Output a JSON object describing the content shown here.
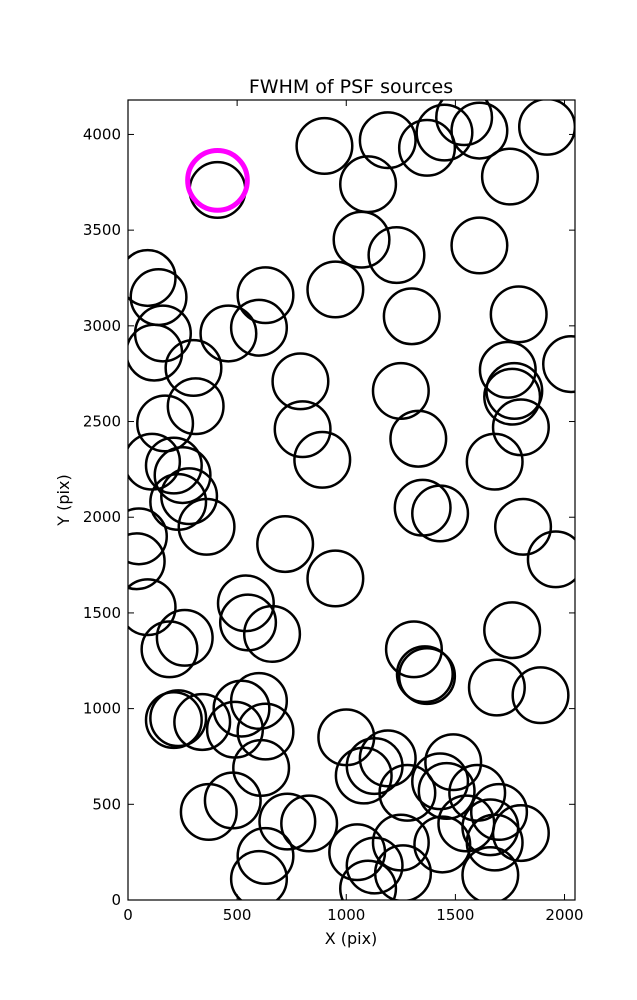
{
  "chart_data": {
    "type": "scatter",
    "title": "FWHM of PSF sources",
    "xlabel": "X (pix)",
    "ylabel": "Y (pix)",
    "xlim": [
      0,
      2048
    ],
    "ylim": [
      0,
      4180
    ],
    "xticks": [
      0,
      500,
      1000,
      1500,
      2000
    ],
    "yticks": [
      0,
      500,
      1000,
      1500,
      2000,
      2500,
      3000,
      3500,
      4000
    ],
    "xtick_labels": [
      "0",
      "500",
      "1000",
      "1500",
      "2000"
    ],
    "ytick_labels": [
      "0",
      "500",
      "1000",
      "1500",
      "2000",
      "2500",
      "3000",
      "3500",
      "4000"
    ],
    "grid": false,
    "legend": "none",
    "colors": {
      "normal": "#000000",
      "highlight": "#ff00ff"
    },
    "circle_radius_data_x": 100,
    "highlight": {
      "x": 410,
      "y": 3760
    },
    "points": [
      {
        "x": 410,
        "y": 3710
      },
      {
        "x": 900,
        "y": 3940
      },
      {
        "x": 1190,
        "y": 3970
      },
      {
        "x": 1370,
        "y": 3930
      },
      {
        "x": 1450,
        "y": 4010
      },
      {
        "x": 1540,
        "y": 4090
      },
      {
        "x": 1610,
        "y": 4020
      },
      {
        "x": 1920,
        "y": 4040
      },
      {
        "x": 1750,
        "y": 3780
      },
      {
        "x": 1100,
        "y": 3740
      },
      {
        "x": 1070,
        "y": 3450
      },
      {
        "x": 1230,
        "y": 3370
      },
      {
        "x": 1610,
        "y": 3420
      },
      {
        "x": 90,
        "y": 3250
      },
      {
        "x": 140,
        "y": 3150
      },
      {
        "x": 630,
        "y": 3160
      },
      {
        "x": 950,
        "y": 3190
      },
      {
        "x": 160,
        "y": 2960
      },
      {
        "x": 460,
        "y": 2960
      },
      {
        "x": 600,
        "y": 2990
      },
      {
        "x": 1300,
        "y": 3050
      },
      {
        "x": 1790,
        "y": 3060
      },
      {
        "x": 120,
        "y": 2860
      },
      {
        "x": 300,
        "y": 2780
      },
      {
        "x": 790,
        "y": 2710
      },
      {
        "x": 1250,
        "y": 2660
      },
      {
        "x": 1740,
        "y": 2770
      },
      {
        "x": 1770,
        "y": 2660
      },
      {
        "x": 1760,
        "y": 2630
      },
      {
        "x": 2030,
        "y": 2800
      },
      {
        "x": 310,
        "y": 2580
      },
      {
        "x": 170,
        "y": 2490
      },
      {
        "x": 800,
        "y": 2460
      },
      {
        "x": 1330,
        "y": 2410
      },
      {
        "x": 1800,
        "y": 2470
      },
      {
        "x": 890,
        "y": 2300
      },
      {
        "x": 110,
        "y": 2290
      },
      {
        "x": 210,
        "y": 2270
      },
      {
        "x": 250,
        "y": 2220
      },
      {
        "x": 1680,
        "y": 2290
      },
      {
        "x": 230,
        "y": 2080
      },
      {
        "x": 280,
        "y": 2110
      },
      {
        "x": 360,
        "y": 1950
      },
      {
        "x": 1350,
        "y": 2050
      },
      {
        "x": 1430,
        "y": 2020
      },
      {
        "x": 1810,
        "y": 1950
      },
      {
        "x": 50,
        "y": 1900
      },
      {
        "x": 40,
        "y": 1770
      },
      {
        "x": 720,
        "y": 1860
      },
      {
        "x": 1960,
        "y": 1780
      },
      {
        "x": 950,
        "y": 1680
      },
      {
        "x": 540,
        "y": 1550
      },
      {
        "x": 550,
        "y": 1450
      },
      {
        "x": 660,
        "y": 1390
      },
      {
        "x": 90,
        "y": 1530
      },
      {
        "x": 260,
        "y": 1370
      },
      {
        "x": 190,
        "y": 1310
      },
      {
        "x": 1310,
        "y": 1310
      },
      {
        "x": 1360,
        "y": 1180
      },
      {
        "x": 1370,
        "y": 1170
      },
      {
        "x": 1760,
        "y": 1410
      },
      {
        "x": 1690,
        "y": 1110
      },
      {
        "x": 1890,
        "y": 1070
      },
      {
        "x": 210,
        "y": 940
      },
      {
        "x": 230,
        "y": 950
      },
      {
        "x": 340,
        "y": 930
      },
      {
        "x": 490,
        "y": 890
      },
      {
        "x": 520,
        "y": 1000
      },
      {
        "x": 600,
        "y": 1040
      },
      {
        "x": 630,
        "y": 880
      },
      {
        "x": 610,
        "y": 690
      },
      {
        "x": 1000,
        "y": 850
      },
      {
        "x": 1080,
        "y": 650
      },
      {
        "x": 1130,
        "y": 700
      },
      {
        "x": 1190,
        "y": 740
      },
      {
        "x": 1280,
        "y": 560
      },
      {
        "x": 1430,
        "y": 620
      },
      {
        "x": 1460,
        "y": 570
      },
      {
        "x": 1490,
        "y": 720
      },
      {
        "x": 1600,
        "y": 560
      },
      {
        "x": 1550,
        "y": 400
      },
      {
        "x": 1660,
        "y": 380
      },
      {
        "x": 1700,
        "y": 460
      },
      {
        "x": 1800,
        "y": 350
      },
      {
        "x": 1680,
        "y": 300
      },
      {
        "x": 1660,
        "y": 130
      },
      {
        "x": 1440,
        "y": 290
      },
      {
        "x": 1250,
        "y": 300
      },
      {
        "x": 1260,
        "y": 140
      },
      {
        "x": 1130,
        "y": 180
      },
      {
        "x": 1100,
        "y": 60
      },
      {
        "x": 1050,
        "y": 250
      },
      {
        "x": 830,
        "y": 400
      },
      {
        "x": 730,
        "y": 410
      },
      {
        "x": 630,
        "y": 230
      },
      {
        "x": 600,
        "y": 110
      },
      {
        "x": 480,
        "y": 520
      },
      {
        "x": 370,
        "y": 460
      }
    ]
  }
}
